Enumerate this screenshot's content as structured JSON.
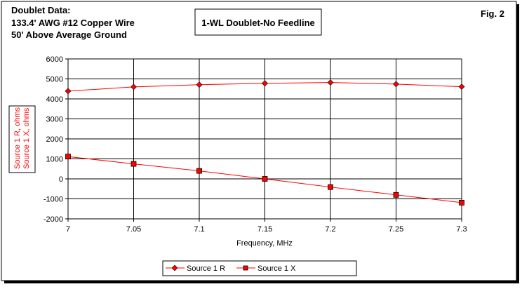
{
  "header": {
    "info_lines": [
      "Doublet Data:",
      "133.4' AWG #12 Copper Wire",
      "50' Above Average Ground"
    ],
    "figure_label": "Fig. 2"
  },
  "chart_data": {
    "type": "line",
    "title": "1-WL Doublet-No Feedline",
    "xlabel": "Frequency, MHz",
    "ylabel": [
      "Source 1 R, ohms",
      "Source 1 X, ohms"
    ],
    "x": [
      7,
      7.05,
      7.1,
      7.15,
      7.2,
      7.25,
      7.3
    ],
    "x_tick_labels": [
      "7",
      "7.05",
      "7.1",
      "7.15",
      "7.2",
      "7.25",
      "7.3"
    ],
    "y_tick_labels": [
      "6000",
      "5000",
      "4000",
      "3000",
      "2000",
      "1000",
      "0",
      "-1000",
      "-2000"
    ],
    "xlim": [
      7,
      7.3
    ],
    "ylim": [
      -2000,
      6000
    ],
    "grid": true,
    "legend_placement": "bottom",
    "series": [
      {
        "name": "Source 1 R",
        "marker": "diamond",
        "color": "#ff0000",
        "values": [
          4390,
          4600,
          4710,
          4780,
          4820,
          4740,
          4610
        ]
      },
      {
        "name": "Source 1 X",
        "marker": "square",
        "color": "#ff0000",
        "values": [
          1115,
          750,
          400,
          0,
          -410,
          -800,
          -1190
        ]
      }
    ]
  }
}
